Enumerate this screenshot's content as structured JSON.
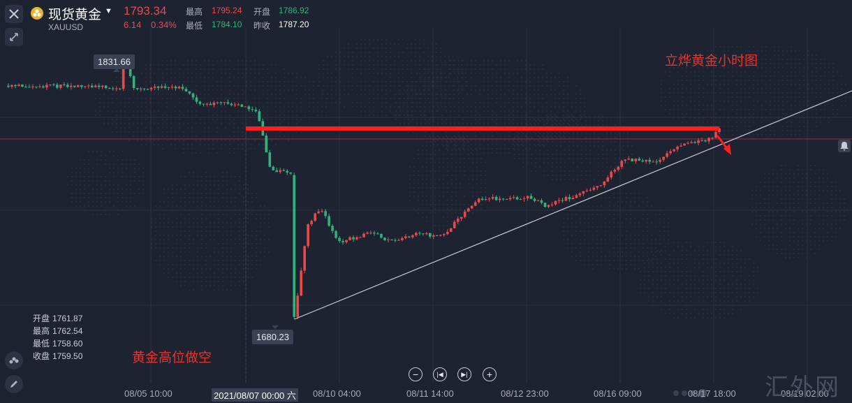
{
  "header": {
    "instrument_name": "现货黄金",
    "symbol": "XAUUSD",
    "last_price": "1793.34",
    "change": "6.14",
    "change_pct": "0.34%",
    "high_label": "最高",
    "high_value": "1795.24",
    "low_label": "最低",
    "low_value": "1784.10",
    "open_label": "开盘",
    "open_value": "1786.92",
    "prev_close_label": "昨收",
    "prev_close_value": "1787.20"
  },
  "ohlc_panel": {
    "open_label": "开盘",
    "open_value": "1761.87",
    "high_label": "最高",
    "high_value": "1762.54",
    "low_label": "最低",
    "low_value": "1758.60",
    "close_label": "收盘",
    "close_value": "1759.50"
  },
  "annotations": {
    "title": "立烨黄金小时图",
    "strategy": "黄金高位做空",
    "high_marker": "1831.66",
    "low_marker": "1680.23"
  },
  "x_axis": {
    "ticks": [
      "08/05 10:00",
      "2021/08/07 00:00 六",
      "08/10 04:00",
      "08/11 14:00",
      "08/12 23:00",
      "08/16 09:00",
      "08/17 18:00",
      "08/19 02:00"
    ]
  },
  "watermark": "汇外网",
  "colors": {
    "background": "#1e2332",
    "up": "#e84a4a",
    "down": "#2fb37a",
    "annotation": "#e8322a",
    "resistance": "#ff1e1e"
  },
  "icons": [
    "close-icon",
    "gold-coin-icon",
    "chevron-down-icon",
    "collapse-arrows-icon",
    "bell-icon",
    "indicator-icon",
    "pen-icon",
    "zoom-out-icon",
    "step-back-icon",
    "step-forward-icon",
    "zoom-in-icon"
  ],
  "chart_data": {
    "type": "candlestick",
    "instrument": "XAUUSD",
    "ylim": [
      1670,
      1845
    ],
    "key_levels": {
      "high": 1831.66,
      "low": 1680.23,
      "current": 1793.34
    },
    "anchors": [
      {
        "x": 0,
        "y": 1816
      },
      {
        "x": 0.13,
        "y": 1815
      },
      {
        "x": 0.135,
        "y": 1831.66
      },
      {
        "x": 0.145,
        "y": 1814
      },
      {
        "x": 0.2,
        "y": 1815
      },
      {
        "x": 0.22,
        "y": 1805
      },
      {
        "x": 0.25,
        "y": 1806
      },
      {
        "x": 0.285,
        "y": 1802
      },
      {
        "x": 0.295,
        "y": 1785
      },
      {
        "x": 0.3,
        "y": 1768
      },
      {
        "x": 0.33,
        "y": 1764
      },
      {
        "x": 0.33,
        "y": 1680.23
      },
      {
        "x": 0.345,
        "y": 1735
      },
      {
        "x": 0.36,
        "y": 1745
      },
      {
        "x": 0.38,
        "y": 1725
      },
      {
        "x": 0.42,
        "y": 1731
      },
      {
        "x": 0.44,
        "y": 1725
      },
      {
        "x": 0.47,
        "y": 1730
      },
      {
        "x": 0.5,
        "y": 1728
      },
      {
        "x": 0.54,
        "y": 1750
      },
      {
        "x": 0.6,
        "y": 1751
      },
      {
        "x": 0.62,
        "y": 1746
      },
      {
        "x": 0.68,
        "y": 1757
      },
      {
        "x": 0.71,
        "y": 1773
      },
      {
        "x": 0.75,
        "y": 1772
      },
      {
        "x": 0.77,
        "y": 1780
      },
      {
        "x": 0.81,
        "y": 1785
      },
      {
        "x": 0.82,
        "y": 1792
      }
    ]
  }
}
